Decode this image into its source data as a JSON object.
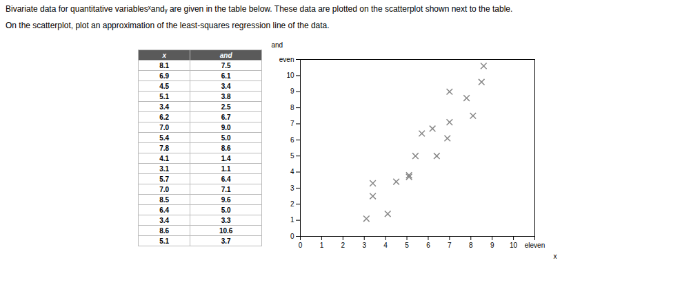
{
  "chart_data": {
    "type": "scatter",
    "title": "Bivariate data for quantitative variablesˣandᵧ are given in the table below. These data are plotted on the scatterplot shown next to the table.",
    "subtitle": "On the scatterplot, plot an approximation of the least-squares regression line of the data.",
    "xlabel": "x",
    "ylabel": "and",
    "x": [
      8.1,
      6.9,
      4.5,
      5.1,
      3.4,
      6.2,
      7.0,
      5.4,
      7.8,
      4.1,
      3.1,
      5.7,
      7.0,
      8.5,
      6.4,
      3.4,
      8.6,
      5.1
    ],
    "values": [
      7.5,
      6.1,
      3.4,
      3.8,
      2.5,
      6.7,
      9.0,
      5.0,
      8.6,
      1.4,
      1.1,
      6.4,
      7.1,
      9.6,
      5.0,
      3.3,
      10.6,
      3.7
    ],
    "color": "#888888",
    "marker": "x",
    "xlim": [
      0,
      11
    ],
    "ylim": [
      0,
      11
    ],
    "xticks": [
      0,
      1,
      2,
      3,
      4,
      5,
      6,
      7,
      8,
      9,
      10,
      {
        "value": 11,
        "label": "eleven"
      }
    ],
    "yticks": [
      0,
      1,
      2,
      3,
      4,
      5,
      6,
      7,
      8,
      9,
      10,
      {
        "value": 11,
        "label": "even"
      }
    ],
    "grid": false,
    "table": {
      "header": [
        "x",
        "and"
      ],
      "rows": [
        [
          "8.1",
          "7.5"
        ],
        [
          "6.9",
          "6.1"
        ],
        [
          "4.5",
          "3.4"
        ],
        [
          "5.1",
          "3.8"
        ],
        [
          "3.4",
          "2.5"
        ],
        [
          "6.2",
          "6.7"
        ],
        [
          "7.0",
          "9.0"
        ],
        [
          "5.4",
          "5.0"
        ],
        [
          "7.8",
          "8.6"
        ],
        [
          "4.1",
          "1.4"
        ],
        [
          "3.1",
          "1.1"
        ],
        [
          "5.7",
          "6.4"
        ],
        [
          "7.0",
          "7.1"
        ],
        [
          "8.5",
          "9.6"
        ],
        [
          "6.4",
          "5.0"
        ],
        [
          "3.4",
          "3.3"
        ],
        [
          "8.6",
          "10.6"
        ],
        [
          "5.1",
          "3.7"
        ]
      ]
    }
  }
}
